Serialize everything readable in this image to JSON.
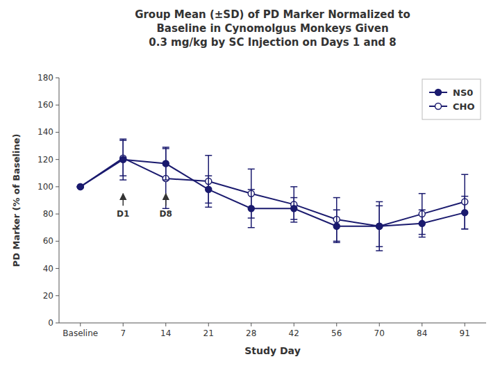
{
  "chart_data": {
    "type": "line",
    "title": "Group Mean (±SD) of PD Marker Normalized to\nBaseline in Cynomolgus Monkeys Given\n0.3 mg/kg by SC Injection on Days 1 and 8",
    "x_label": "Study Day",
    "y_label": "PD Marker (% of Baseline)",
    "categories": [
      "Baseline",
      "7",
      "14",
      "21",
      "28",
      "42",
      "56",
      "70",
      "84",
      "91"
    ],
    "series": [
      {
        "name": "NS0",
        "color": "#1a1a6e",
        "marker": "filled",
        "values": [
          100,
          120,
          117,
          98,
          84,
          84,
          71,
          71,
          73,
          81
        ],
        "errors": [
          0,
          15,
          12,
          10,
          14,
          8,
          12,
          15,
          10,
          12
        ]
      },
      {
        "name": "CHO",
        "color": "#1a1a6e",
        "marker": "open",
        "values": [
          100,
          121,
          106,
          104,
          95,
          87,
          76,
          71,
          80,
          89
        ],
        "errors": [
          0,
          13,
          22,
          19,
          18,
          13,
          16,
          18,
          15,
          20
        ]
      }
    ],
    "ylim": [
      0,
      180
    ],
    "yticks": [
      0,
      20,
      40,
      60,
      80,
      100,
      120,
      140,
      160,
      180
    ],
    "grid": false,
    "legend": "upper right",
    "annotations": [
      {
        "label": "D1",
        "x": "7",
        "y": 84,
        "arrow_from": 86,
        "arrow_to": 95
      },
      {
        "label": "D8",
        "x": "14",
        "y": 84,
        "arrow_from": 86,
        "arrow_to": 95
      }
    ]
  }
}
